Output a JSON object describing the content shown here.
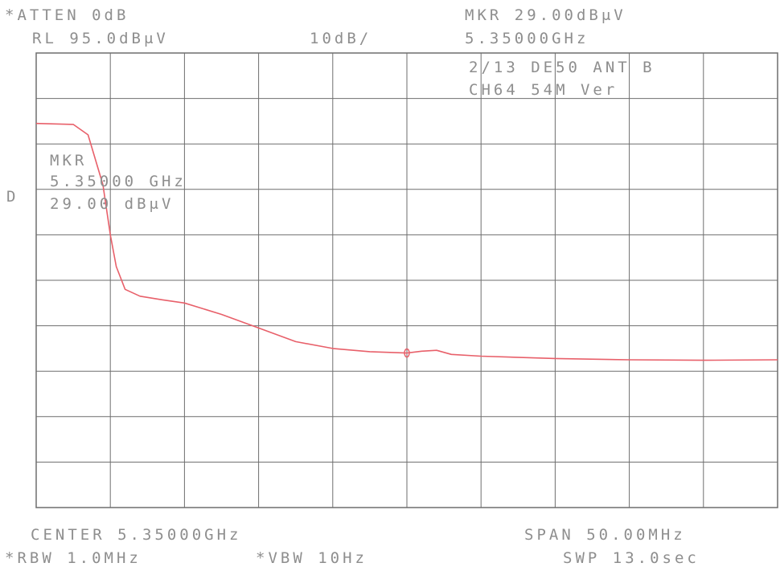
{
  "header": {
    "atten": "*ATTEN 0dB",
    "ref_level": "RL 95.0dBμV",
    "scale": "10dB/",
    "mkr_readout": "MKR 29.00dBμV",
    "mkr_freq": "5.35000GHz"
  },
  "annotation": {
    "line1": "2/13 DE50 ANT B",
    "line2": "CH64 54M Ver"
  },
  "marker_box": {
    "label": "MKR",
    "freq": "5.35000 GHz",
    "level": "29.00 dBμV"
  },
  "side_label": "D",
  "footer": {
    "center": "CENTER 5.35000GHz",
    "span": "SPAN 50.00MHz",
    "rbw": "*RBW 1.0MHz",
    "vbw": "*VBW 10Hz",
    "sweep": "SWP 13.0sec"
  },
  "colors": {
    "trace": "#e8606a",
    "grid": "#6e6e6e",
    "text": "#8e8e8e"
  },
  "chart_data": {
    "type": "line",
    "x_unit": "MHz",
    "y_unit": "dBμV",
    "xlim": [
      5325.0,
      5375.0
    ],
    "ylim": [
      -5,
      95
    ],
    "grid": true,
    "x_divisions": 10,
    "y_divisions": 10,
    "marker": {
      "x": 5350.0,
      "y": 29.0
    },
    "series": [
      {
        "x": [
          5325.0,
          5327.5,
          5328.5,
          5329.5,
          5330.0,
          5330.4,
          5331.0,
          5332.0,
          5333.5,
          5335.0,
          5337.5,
          5340.0,
          5342.5,
          5345.0,
          5347.5,
          5350.0,
          5351.0,
          5352.0,
          5353.0,
          5355.0,
          5360.0,
          5365.0,
          5370.0,
          5375.0
        ],
        "y": [
          79.5,
          79.3,
          77.0,
          66.0,
          55.0,
          48.0,
          43.0,
          41.5,
          40.7,
          40.0,
          37.5,
          34.5,
          31.5,
          30.0,
          29.3,
          29.0,
          29.4,
          29.6,
          28.7,
          28.3,
          27.8,
          27.5,
          27.4,
          27.5
        ]
      }
    ]
  }
}
